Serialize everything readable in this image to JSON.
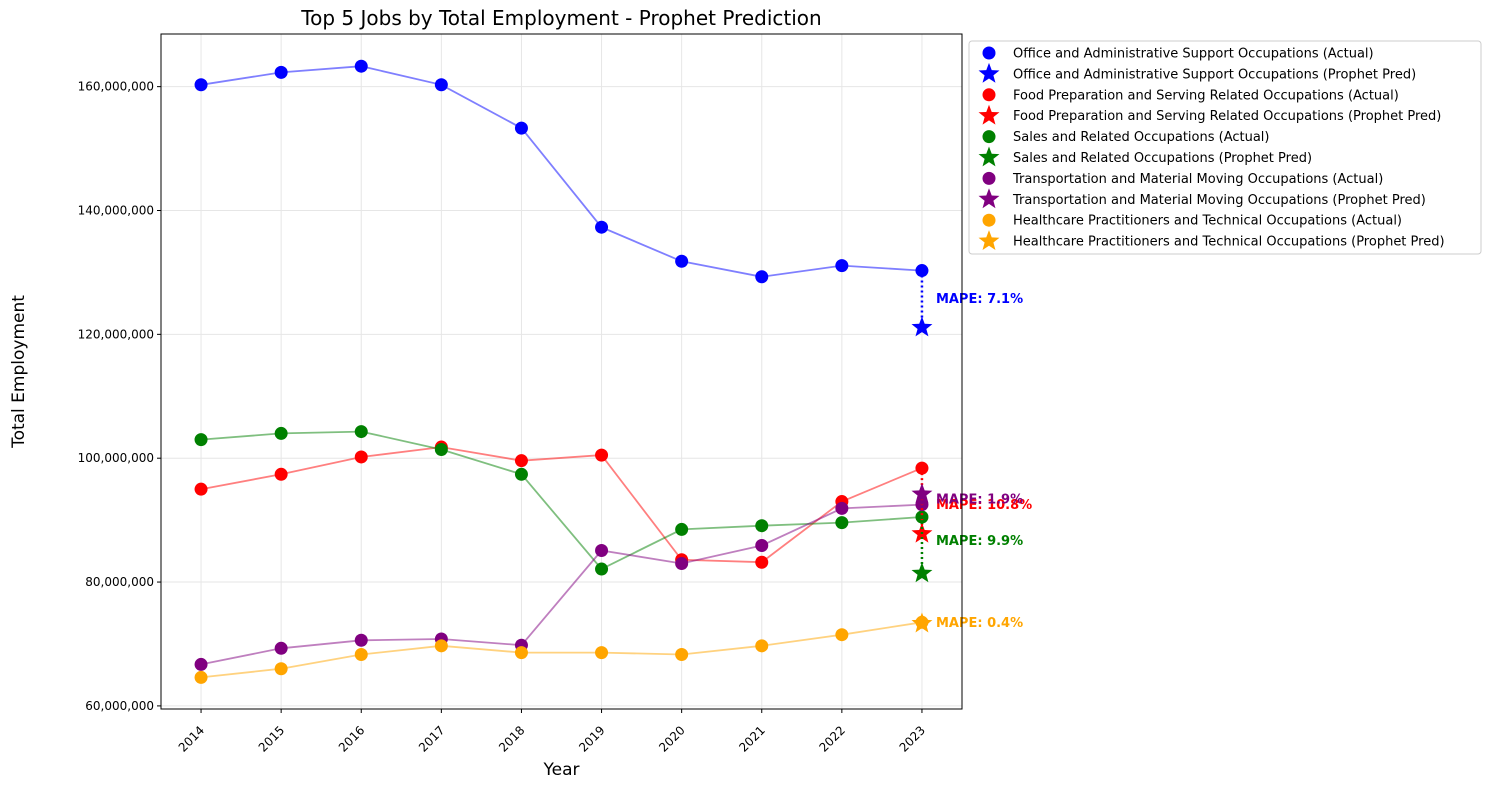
{
  "chart_data": {
    "type": "line",
    "title": "Top 5 Jobs by Total Employment - Prophet Prediction",
    "xlabel": "Year",
    "ylabel": "Total Employment",
    "x": [
      2014,
      2015,
      2016,
      2017,
      2018,
      2019,
      2020,
      2021,
      2022,
      2023
    ],
    "x_tick_labels": [
      "2014",
      "2015",
      "2016",
      "2017",
      "2018",
      "2019",
      "2020",
      "2021",
      "2022",
      "2023"
    ],
    "ylim": [
      59500000,
      168500000
    ],
    "y_ticks": [
      60000000,
      80000000,
      100000000,
      120000000,
      140000000,
      160000000
    ],
    "y_tick_labels": [
      "60,000,000",
      "80,000,000",
      "100,000,000",
      "120,000,000",
      "140,000,000",
      "160,000,000"
    ],
    "grid": true,
    "legend_position": "outside-top-right",
    "series": [
      {
        "name": "Office and Administrative Support Occupations",
        "actual_label": "Office and Administrative Support Occupations (Actual)",
        "pred_label": "Office and Administrative Support Occupations (Prophet Pred)",
        "color": "#0000ff",
        "values": [
          160300000,
          162300000,
          163300000,
          160300000,
          153300000,
          137300000,
          131800000,
          129300000,
          131100000,
          130300000
        ],
        "prediction": 121100000,
        "mape_label": "MAPE: 7.1%"
      },
      {
        "name": "Food Preparation and Serving Related Occupations",
        "actual_label": "Food Preparation and Serving Related Occupations (Actual)",
        "pred_label": "Food Preparation and Serving Related Occupations (Prophet Pred)",
        "color": "#ff0000",
        "values": [
          95000000,
          97400000,
          100200000,
          101800000,
          99600000,
          100500000,
          83600000,
          83200000,
          93000000,
          98400000
        ],
        "prediction": 87800000,
        "mape_label": "MAPE: 10.8%"
      },
      {
        "name": "Sales and Related Occupations",
        "actual_label": "Sales and Related Occupations (Actual)",
        "pred_label": "Sales and Related Occupations (Prophet Pred)",
        "color": "#008000",
        "values": [
          103000000,
          104000000,
          104300000,
          101400000,
          97400000,
          82100000,
          88500000,
          89100000,
          89600000,
          90500000
        ],
        "prediction": 81400000,
        "mape_label": "MAPE: 9.9%"
      },
      {
        "name": "Transportation and Material Moving Occupations",
        "actual_label": "Transportation and Material Moving Occupations (Actual)",
        "pred_label": "Transportation and Material Moving Occupations (Prophet Pred)",
        "color": "#800080",
        "values": [
          66700000,
          69300000,
          70600000,
          70800000,
          69800000,
          85100000,
          83000000,
          85900000,
          91900000,
          92500000
        ],
        "prediction": 94200000,
        "mape_label": "MAPE: 1.9%"
      },
      {
        "name": "Healthcare Practitioners and Technical Occupations",
        "actual_label": "Healthcare Practitioners and Technical Occupations (Actual)",
        "pred_label": "Healthcare Practitioners and Technical Occupations (Prophet Pred)",
        "color": "#ffa500",
        "values": [
          64600000,
          66000000,
          68300000,
          69700000,
          68600000,
          68600000,
          68300000,
          69700000,
          71500000,
          73500000
        ],
        "prediction": 73300000,
        "mape_label": "MAPE: 0.4%"
      }
    ]
  }
}
